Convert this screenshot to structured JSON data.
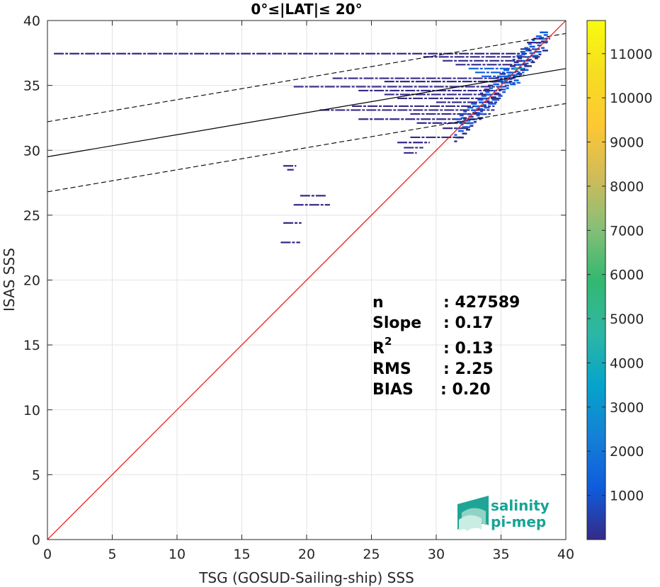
{
  "chart_data": {
    "type": "scatter",
    "title": "0°≤|LAT|≤ 20°",
    "xlabel": "TSG (GOSUD-Sailing-ship) SSS",
    "ylabel": "ISAS SSS",
    "xlim": [
      0,
      40
    ],
    "ylim": [
      0,
      40
    ],
    "xticks": [
      0,
      5,
      10,
      15,
      20,
      25,
      30,
      35,
      40
    ],
    "yticks": [
      0,
      5,
      10,
      15,
      20,
      25,
      30,
      35,
      40
    ],
    "grid": true,
    "regression": {
      "slope": 0.17,
      "intercept": 29.5,
      "band_offset": 2.7
    },
    "identity_line": true,
    "stats": {
      "n_label": "n",
      "n_value": ": 427589",
      "slope_label": "Slope",
      "slope_value": ": 0.17",
      "r2_label": "R",
      "r2_sup": "2",
      "r2_value": ": 0.13",
      "rms_label": "RMS",
      "rms_value": ": 2.25",
      "bias_label": "BIAS",
      "bias_value": ": 0.20"
    },
    "colorbar": {
      "min": 0,
      "max": 11750,
      "ticks": [
        1000,
        2000,
        3000,
        4000,
        5000,
        6000,
        7000,
        8000,
        9000,
        10000,
        11000
      ],
      "colormap": "parula"
    },
    "density_segments": [
      {
        "x0": 0.5,
        "x1": 37.0,
        "y": 37.45,
        "c": 300
      },
      {
        "x0": 29.0,
        "x1": 38.0,
        "y": 37.2,
        "c": 400
      },
      {
        "x0": 30.5,
        "x1": 37.5,
        "y": 36.9,
        "c": 500
      },
      {
        "x0": 31.5,
        "x1": 37.0,
        "y": 36.6,
        "c": 500
      },
      {
        "x0": 32.5,
        "x1": 37.0,
        "y": 36.3,
        "c": 700
      },
      {
        "x0": 33.0,
        "x1": 36.8,
        "y": 36.0,
        "c": 700
      },
      {
        "x0": 33.5,
        "x1": 36.5,
        "y": 35.7,
        "c": 600
      },
      {
        "x0": 22.0,
        "x1": 36.0,
        "y": 35.55,
        "c": 300
      },
      {
        "x0": 26.0,
        "x1": 35.8,
        "y": 35.3,
        "c": 400
      },
      {
        "x0": 19.0,
        "x1": 35.5,
        "y": 34.9,
        "c": 250
      },
      {
        "x0": 24.0,
        "x1": 35.0,
        "y": 34.6,
        "c": 300
      },
      {
        "x0": 26.0,
        "x1": 35.0,
        "y": 34.3,
        "c": 350
      },
      {
        "x0": 27.0,
        "x1": 35.0,
        "y": 34.0,
        "c": 400
      },
      {
        "x0": 30.0,
        "x1": 34.8,
        "y": 33.7,
        "c": 400
      },
      {
        "x0": 23.5,
        "x1": 34.5,
        "y": 33.4,
        "c": 250
      },
      {
        "x0": 21.0,
        "x1": 34.5,
        "y": 33.1,
        "c": 250
      },
      {
        "x0": 28.0,
        "x1": 34.2,
        "y": 32.8,
        "c": 300
      },
      {
        "x0": 24.0,
        "x1": 33.5,
        "y": 32.4,
        "c": 250
      },
      {
        "x0": 28.5,
        "x1": 33.0,
        "y": 32.1,
        "c": 250
      },
      {
        "x0": 30.5,
        "x1": 32.5,
        "y": 31.7,
        "c": 250
      },
      {
        "x0": 28.0,
        "x1": 32.0,
        "y": 31.0,
        "c": 250
      },
      {
        "x0": 27.0,
        "x1": 29.5,
        "y": 30.6,
        "c": 250
      },
      {
        "x0": 27.5,
        "x1": 29.0,
        "y": 30.2,
        "c": 250
      },
      {
        "x0": 27.5,
        "x1": 28.5,
        "y": 29.8,
        "c": 250
      },
      {
        "x0": 18.2,
        "x1": 19.2,
        "y": 28.8,
        "c": 250
      },
      {
        "x0": 18.5,
        "x1": 19.0,
        "y": 28.5,
        "c": 250
      },
      {
        "x0": 19.5,
        "x1": 21.5,
        "y": 26.5,
        "c": 250
      },
      {
        "x0": 19.0,
        "x1": 21.8,
        "y": 25.8,
        "c": 250
      },
      {
        "x0": 18.2,
        "x1": 19.6,
        "y": 24.4,
        "c": 250
      },
      {
        "x0": 18.0,
        "x1": 19.5,
        "y": 22.9,
        "c": 250
      },
      {
        "x0": 35.0,
        "x1": 36.5,
        "y": 35.2,
        "c": 1500
      },
      {
        "x0": 35.5,
        "x1": 36.8,
        "y": 35.8,
        "c": 2000
      },
      {
        "x0": 36.0,
        "x1": 36.8,
        "y": 36.3,
        "c": 3500
      },
      {
        "x0": 37.0,
        "x1": 38.6,
        "y": 38.3,
        "c": 400
      },
      {
        "x0": 37.5,
        "x1": 38.8,
        "y": 38.6,
        "c": 300
      },
      {
        "x0": 36.5,
        "x1": 38.0,
        "y": 37.8,
        "c": 400
      }
    ],
    "logo": {
      "line1": "salinity",
      "line2": "pi-mep"
    }
  }
}
